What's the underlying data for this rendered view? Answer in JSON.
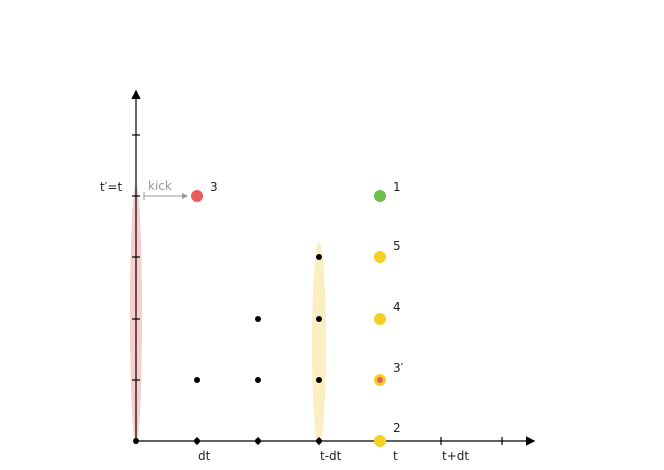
{
  "y_label": "t′=t",
  "kick_label": "kick",
  "x_labels": [
    "dt",
    "t-dt",
    "t",
    "t+dt"
  ],
  "point_labels": [
    "3",
    "1",
    "5",
    "4",
    "3′",
    "2"
  ]
}
